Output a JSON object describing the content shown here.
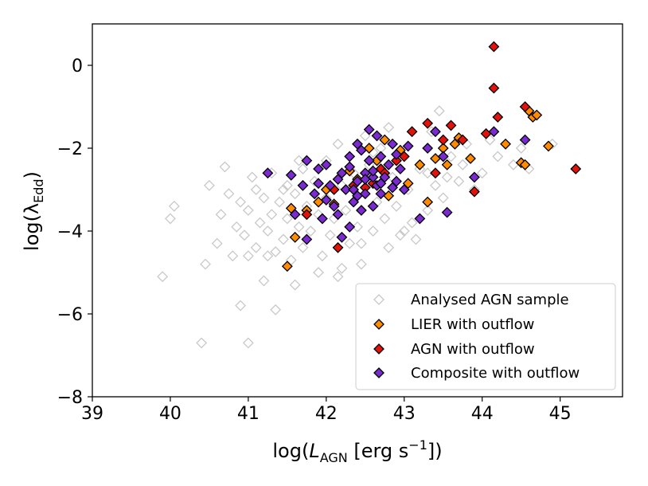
{
  "chart_data": {
    "type": "scatter",
    "title": "",
    "xlabel": {
      "prefix": "log(",
      "italic": "L",
      "sub": "AGN",
      "middle": " [erg s",
      "sup": "−1",
      "suffix": "])"
    },
    "ylabel": {
      "prefix": "log(λ",
      "sub": "Edd",
      "suffix": ")"
    },
    "xlim": [
      39,
      45.8
    ],
    "ylim": [
      -8,
      1.0
    ],
    "xticks": [
      39,
      40,
      41,
      42,
      43,
      44,
      45
    ],
    "xtick_labels": [
      "39",
      "40",
      "41",
      "42",
      "43",
      "44",
      "45"
    ],
    "yticks": [
      -8,
      -6,
      -4,
      -2,
      0
    ],
    "ytick_labels": [
      "−8",
      "−6",
      "−4",
      "−2",
      "0"
    ],
    "legend_position": "lower-right",
    "series": [
      {
        "name": "Analysed AGN sample",
        "style": "open",
        "color": "#c8c8c8",
        "edge": "#c8c8c8",
        "points": [
          [
            39.9,
            -5.1
          ],
          [
            40.0,
            -3.7
          ],
          [
            40.05,
            -3.4
          ],
          [
            40.4,
            -6.7
          ],
          [
            40.45,
            -4.8
          ],
          [
            40.5,
            -2.9
          ],
          [
            40.6,
            -4.3
          ],
          [
            40.65,
            -3.6
          ],
          [
            40.7,
            -2.45
          ],
          [
            40.75,
            -3.1
          ],
          [
            40.8,
            -4.6
          ],
          [
            40.85,
            -3.9
          ],
          [
            40.9,
            -3.3
          ],
          [
            40.9,
            -5.8
          ],
          [
            40.95,
            -4.1
          ],
          [
            41.0,
            -6.7
          ],
          [
            41.0,
            -3.5
          ],
          [
            41.05,
            -2.7
          ],
          [
            41.1,
            -4.4
          ],
          [
            41.1,
            -3.0
          ],
          [
            41.15,
            -3.8
          ],
          [
            41.2,
            -5.2
          ],
          [
            41.2,
            -3.2
          ],
          [
            41.25,
            -4.0
          ],
          [
            41.3,
            -2.6
          ],
          [
            41.3,
            -3.6
          ],
          [
            41.35,
            -5.9
          ],
          [
            41.35,
            -4.5
          ],
          [
            41.4,
            -3.3
          ],
          [
            41.45,
            -4.2
          ],
          [
            41.5,
            -2.9
          ],
          [
            41.5,
            -3.7
          ],
          [
            41.55,
            -4.7
          ],
          [
            41.6,
            -3.1
          ],
          [
            41.6,
            -5.3
          ],
          [
            41.65,
            -3.9
          ],
          [
            41.7,
            -2.5
          ],
          [
            41.7,
            -4.4
          ],
          [
            41.75,
            -3.4
          ],
          [
            41.8,
            -4.0
          ],
          [
            41.85,
            -2.8
          ],
          [
            41.9,
            -3.6
          ],
          [
            41.95,
            -4.6
          ],
          [
            42.0,
            -3.2
          ],
          [
            42.0,
            -2.3
          ],
          [
            42.05,
            -4.1
          ],
          [
            42.1,
            -3.7
          ],
          [
            42.15,
            -5.1
          ],
          [
            42.2,
            -2.9
          ],
          [
            42.25,
            -3.5
          ],
          [
            42.3,
            -4.3
          ],
          [
            42.35,
            -2.6
          ],
          [
            42.4,
            -3.9
          ],
          [
            42.45,
            -4.8
          ],
          [
            42.5,
            -3.1
          ],
          [
            42.5,
            -1.7
          ],
          [
            42.55,
            -2.4
          ],
          [
            42.6,
            -4.0
          ],
          [
            42.65,
            -3.3
          ],
          [
            42.7,
            -2.0
          ],
          [
            42.75,
            -3.7
          ],
          [
            42.8,
            -4.4
          ],
          [
            42.85,
            -2.7
          ],
          [
            42.9,
            -3.4
          ],
          [
            42.95,
            -4.1
          ],
          [
            43.0,
            -2.2
          ],
          [
            43.05,
            -3.0
          ],
          [
            43.1,
            -3.8
          ],
          [
            43.15,
            -4.2
          ],
          [
            43.2,
            -2.5
          ],
          [
            43.3,
            -3.5
          ],
          [
            43.35,
            -1.6
          ],
          [
            43.4,
            -2.9
          ],
          [
            43.45,
            -1.1
          ],
          [
            43.5,
            -3.2
          ],
          [
            43.6,
            -2.2
          ],
          [
            43.7,
            -2.8
          ],
          [
            43.8,
            -1.9
          ],
          [
            43.9,
            -3.0
          ],
          [
            44.0,
            -2.6
          ],
          [
            44.1,
            -1.8
          ],
          [
            44.2,
            -2.2
          ],
          [
            44.4,
            -2.4
          ],
          [
            44.5,
            -2.0
          ],
          [
            44.6,
            -2.5
          ],
          [
            44.9,
            -1.9
          ],
          [
            41.0,
            -4.6
          ],
          [
            41.25,
            -4.6
          ],
          [
            41.45,
            -3.0
          ],
          [
            41.65,
            -2.3
          ],
          [
            41.9,
            -5.0
          ],
          [
            42.2,
            -4.9
          ],
          [
            42.45,
            -4.3
          ],
          [
            42.6,
            -2.1
          ],
          [
            42.8,
            -1.5
          ],
          [
            43.0,
            -4.0
          ],
          [
            43.3,
            -2.6
          ],
          [
            43.55,
            -2.7
          ],
          [
            43.75,
            -2.4
          ],
          [
            42.15,
            -1.9
          ]
        ]
      },
      {
        "name": "LIER with outflow",
        "style": "filled",
        "color": "#ff8c00",
        "edge": "#000000",
        "points": [
          [
            41.5,
            -4.85
          ],
          [
            41.55,
            -3.45
          ],
          [
            41.6,
            -4.15
          ],
          [
            41.75,
            -3.5
          ],
          [
            41.9,
            -3.3
          ],
          [
            42.0,
            -3.0
          ],
          [
            42.1,
            -3.35
          ],
          [
            42.3,
            -2.55
          ],
          [
            42.4,
            -2.75
          ],
          [
            42.55,
            -2.0
          ],
          [
            42.65,
            -2.3
          ],
          [
            42.75,
            -1.8
          ],
          [
            42.8,
            -3.15
          ],
          [
            42.95,
            -2.05
          ],
          [
            43.05,
            -2.85
          ],
          [
            43.2,
            -2.4
          ],
          [
            43.3,
            -3.3
          ],
          [
            43.4,
            -2.25
          ],
          [
            43.5,
            -2.0
          ],
          [
            43.55,
            -2.4
          ],
          [
            43.65,
            -1.9
          ],
          [
            43.7,
            -1.75
          ],
          [
            43.85,
            -2.25
          ],
          [
            44.3,
            -1.9
          ],
          [
            44.5,
            -2.35
          ],
          [
            44.55,
            -2.4
          ],
          [
            44.6,
            -1.1
          ],
          [
            44.65,
            -1.25
          ],
          [
            44.7,
            -1.2
          ],
          [
            44.85,
            -1.95
          ]
        ]
      },
      {
        "name": "AGN with outflow",
        "style": "filled",
        "color": "#e3120b",
        "edge": "#000000",
        "points": [
          [
            42.15,
            -4.4
          ],
          [
            41.75,
            -3.6
          ],
          [
            42.1,
            -3.0
          ],
          [
            42.35,
            -2.9
          ],
          [
            42.5,
            -2.95
          ],
          [
            42.6,
            -2.85
          ],
          [
            42.7,
            -2.5
          ],
          [
            42.75,
            -2.6
          ],
          [
            42.9,
            -2.3
          ],
          [
            43.0,
            -2.2
          ],
          [
            43.1,
            -1.6
          ],
          [
            43.3,
            -1.4
          ],
          [
            43.4,
            -2.6
          ],
          [
            43.5,
            -1.8
          ],
          [
            43.6,
            -1.45
          ],
          [
            43.75,
            -1.8
          ],
          [
            43.9,
            -3.05
          ],
          [
            44.05,
            -1.65
          ],
          [
            44.15,
            -0.55
          ],
          [
            44.15,
            0.45
          ],
          [
            44.2,
            -1.25
          ],
          [
            44.55,
            -1.0
          ],
          [
            45.2,
            -2.5
          ]
        ]
      },
      {
        "name": "Composite with outflow",
        "style": "filled",
        "color": "#7b2ad1",
        "edge": "#000000",
        "points": [
          [
            41.25,
            -2.6
          ],
          [
            41.55,
            -2.65
          ],
          [
            41.6,
            -3.6
          ],
          [
            41.7,
            -2.9
          ],
          [
            41.75,
            -4.2
          ],
          [
            41.75,
            -2.3
          ],
          [
            41.85,
            -3.1
          ],
          [
            41.9,
            -2.5
          ],
          [
            41.95,
            -3.7
          ],
          [
            42.0,
            -2.4
          ],
          [
            42.05,
            -2.9
          ],
          [
            42.1,
            -3.4
          ],
          [
            42.15,
            -3.6
          ],
          [
            42.2,
            -2.6
          ],
          [
            42.25,
            -3.0
          ],
          [
            42.3,
            -3.9
          ],
          [
            42.3,
            -2.2
          ],
          [
            42.35,
            -3.3
          ],
          [
            42.4,
            -2.8
          ],
          [
            42.4,
            -1.9
          ],
          [
            42.45,
            -3.5
          ],
          [
            42.5,
            -2.6
          ],
          [
            42.5,
            -3.1
          ],
          [
            42.55,
            -2.3
          ],
          [
            42.55,
            -1.55
          ],
          [
            42.6,
            -2.7
          ],
          [
            42.6,
            -3.4
          ],
          [
            42.65,
            -1.7
          ],
          [
            42.65,
            -2.9
          ],
          [
            42.7,
            -2.2
          ],
          [
            42.7,
            -3.1
          ],
          [
            42.75,
            -2.7
          ],
          [
            42.8,
            -2.4
          ],
          [
            42.85,
            -1.9
          ],
          [
            42.9,
            -2.8
          ],
          [
            42.95,
            -2.5
          ],
          [
            43.0,
            -3.0
          ],
          [
            43.05,
            -1.95
          ],
          [
            43.2,
            -3.7
          ],
          [
            43.3,
            -2.0
          ],
          [
            43.4,
            -1.6
          ],
          [
            43.5,
            -2.2
          ],
          [
            43.55,
            -3.55
          ],
          [
            43.9,
            -2.7
          ],
          [
            44.15,
            -1.6
          ],
          [
            44.55,
            -1.8
          ],
          [
            42.2,
            -4.15
          ],
          [
            42.45,
            -2.05
          ],
          [
            42.35,
            -3.0
          ],
          [
            42.6,
            -2.55
          ],
          [
            42.85,
            -2.95
          ],
          [
            42.0,
            -3.25
          ],
          [
            42.5,
            -2.75
          ],
          [
            42.7,
            -2.85
          ],
          [
            42.9,
            -2.15
          ],
          [
            42.3,
            -2.45
          ],
          [
            41.9,
            -2.85
          ],
          [
            42.15,
            -2.75
          ],
          [
            42.4,
            -3.15
          ]
        ]
      }
    ]
  }
}
